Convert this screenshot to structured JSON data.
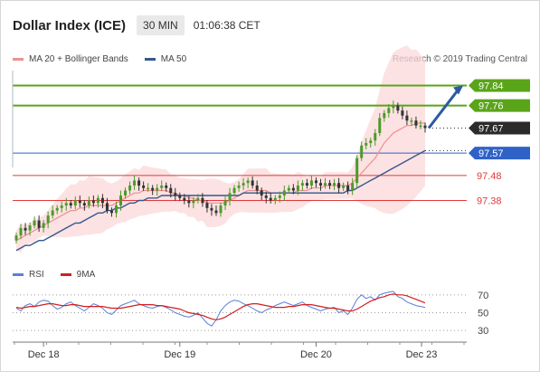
{
  "header": {
    "title": "Dollar Index (ICE)",
    "timeframe": "30 MIN",
    "time": "01:06:38 CET"
  },
  "legend": {
    "ma20_label": "MA 20 + Bollinger Bands",
    "ma50_label": "MA 50",
    "credit": "Research © 2019 Trading Central"
  },
  "rsi_legend": {
    "rsi_label": "RSI",
    "ma_label": "9MA"
  },
  "colors": {
    "green": "#5aa41a",
    "blue": "#2f62c7",
    "dark": "#2b2b2b",
    "red": "#e03a3a",
    "band": "#fbd8d8",
    "ma20": "#ef8f8f",
    "ma50": "#35578f",
    "candle_up": "#4d9a2a",
    "candle_down": "#333333",
    "rsi": "#5b7fd6",
    "rsi_ma": "#d11f1f",
    "arrow": "#2c5aa0"
  },
  "chart_data": [
    {
      "type": "candlestick",
      "title": "Dollar Index (ICE)",
      "ylim": [
        97.15,
        97.9
      ],
      "x_ticks": [
        "Dec 18",
        "Dec 19",
        "Dec 20",
        "Dec 23"
      ],
      "levels": [
        {
          "value": 97.84,
          "label": "97.84",
          "style": "green-line",
          "tag": "green"
        },
        {
          "value": 97.76,
          "label": "97.76",
          "style": "green-line",
          "tag": "green"
        },
        {
          "value": 97.67,
          "label": "97.67",
          "style": "dotted",
          "tag": "dark"
        },
        {
          "value": 97.57,
          "label": "97.57",
          "style": "blue-line",
          "tag": "blue"
        },
        {
          "value": 97.48,
          "label": "97.48",
          "style": "red-line",
          "tag": "none"
        },
        {
          "value": 97.38,
          "label": "97.38",
          "style": "red-line",
          "tag": "none"
        }
      ],
      "close": [
        97.24,
        97.27,
        97.26,
        97.28,
        97.3,
        97.27,
        97.29,
        97.32,
        97.34,
        97.35,
        97.36,
        97.37,
        97.36,
        97.38,
        97.37,
        97.36,
        97.38,
        97.37,
        97.39,
        97.37,
        97.34,
        97.33,
        97.36,
        97.4,
        97.42,
        97.44,
        97.46,
        97.44,
        97.43,
        97.43,
        97.42,
        97.43,
        97.44,
        97.43,
        97.41,
        97.4,
        97.39,
        97.38,
        97.37,
        97.38,
        97.39,
        97.37,
        97.35,
        97.34,
        97.33,
        97.36,
        97.38,
        97.41,
        97.43,
        97.44,
        97.45,
        97.46,
        97.44,
        97.42,
        97.4,
        97.39,
        97.38,
        97.39,
        97.4,
        97.42,
        97.43,
        97.42,
        97.44,
        97.45,
        97.44,
        97.46,
        97.45,
        97.44,
        97.45,
        97.44,
        97.45,
        97.43,
        97.44,
        97.42,
        97.45,
        97.55,
        97.6,
        97.61,
        97.62,
        97.65,
        97.71,
        97.73,
        97.75,
        97.76,
        97.74,
        97.72,
        97.7,
        97.7,
        97.68,
        97.68,
        97.67
      ],
      "ma20": [
        97.22,
        97.23,
        97.24,
        97.25,
        97.26,
        97.27,
        97.28,
        97.29,
        97.3,
        97.31,
        97.32,
        97.33,
        97.34,
        97.34,
        97.35,
        97.35,
        97.36,
        97.36,
        97.36,
        97.36,
        97.36,
        97.36,
        97.37,
        97.38,
        97.39,
        97.4,
        97.41,
        97.41,
        97.42,
        97.42,
        97.42,
        97.42,
        97.42,
        97.42,
        97.41,
        97.41,
        97.4,
        97.4,
        97.39,
        97.39,
        97.38,
        97.38,
        97.37,
        97.37,
        97.37,
        97.37,
        97.37,
        97.38,
        97.39,
        97.4,
        97.41,
        97.42,
        97.42,
        97.42,
        97.42,
        97.42,
        97.41,
        97.41,
        97.41,
        97.41,
        97.41,
        97.41,
        97.42,
        97.42,
        97.42,
        97.43,
        97.43,
        97.43,
        97.44,
        97.44,
        97.44,
        97.44,
        97.44,
        97.44,
        97.45,
        97.47,
        97.49,
        97.51,
        97.53,
        97.55,
        97.58,
        97.61,
        97.63,
        97.65,
        97.66,
        97.67,
        97.68,
        97.68,
        97.69,
        97.69,
        97.69
      ],
      "ma50": [
        97.18,
        97.19,
        97.2,
        97.2,
        97.21,
        97.22,
        97.22,
        97.23,
        97.24,
        97.25,
        97.26,
        97.27,
        97.28,
        97.29,
        97.29,
        97.3,
        97.31,
        97.32,
        97.33,
        97.33,
        97.34,
        97.34,
        97.35,
        97.35,
        97.36,
        97.37,
        97.37,
        97.38,
        97.38,
        97.39,
        97.39,
        97.39,
        97.4,
        97.4,
        97.4,
        97.4,
        97.4,
        97.4,
        97.4,
        97.4,
        97.4,
        97.4,
        97.4,
        97.4,
        97.4,
        97.4,
        97.4,
        97.4,
        97.4,
        97.4,
        97.41,
        97.41,
        97.41,
        97.41,
        97.41,
        97.41,
        97.41,
        97.41,
        97.41,
        97.41,
        97.41,
        97.41,
        97.41,
        97.41,
        97.41,
        97.41,
        97.41,
        97.41,
        97.41,
        97.41,
        97.41,
        97.41,
        97.41,
        97.42,
        97.42,
        97.43,
        97.44,
        97.45,
        97.46,
        97.47,
        97.48,
        97.49,
        97.5,
        97.51,
        97.52,
        97.53,
        97.54,
        97.55,
        97.56,
        97.57,
        97.58
      ],
      "projection": {
        "from": 97.67,
        "to": 97.84
      }
    },
    {
      "type": "line",
      "title": "RSI",
      "ylim": [
        25,
        80
      ],
      "y_ticks": [
        70,
        50,
        30
      ],
      "series": [
        {
          "name": "RSI",
          "values": [
            55,
            52,
            58,
            60,
            57,
            62,
            64,
            63,
            58,
            54,
            56,
            60,
            62,
            58,
            55,
            52,
            56,
            60,
            58,
            55,
            50,
            48,
            53,
            58,
            60,
            62,
            64,
            60,
            58,
            56,
            55,
            57,
            58,
            56,
            53,
            50,
            48,
            46,
            45,
            47,
            50,
            44,
            38,
            35,
            42,
            52,
            58,
            62,
            64,
            63,
            60,
            58,
            55,
            52,
            50,
            53,
            55,
            58,
            60,
            62,
            60,
            58,
            60,
            62,
            58,
            56,
            54,
            52,
            54,
            55,
            56,
            50,
            52,
            48,
            55,
            65,
            70,
            66,
            68,
            64,
            70,
            72,
            73,
            74,
            68,
            66,
            62,
            60,
            58,
            57,
            56
          ]
        },
        {
          "name": "9MA",
          "values": [
            56,
            55,
            56,
            57,
            57,
            58,
            59,
            60,
            60,
            59,
            58,
            58,
            59,
            59,
            58,
            57,
            57,
            57,
            57,
            57,
            56,
            55,
            55,
            55,
            56,
            57,
            58,
            59,
            59,
            59,
            59,
            58,
            58,
            57,
            56,
            55,
            54,
            52,
            50,
            49,
            48,
            47,
            45,
            43,
            42,
            43,
            45,
            48,
            51,
            54,
            57,
            59,
            60,
            60,
            59,
            58,
            57,
            56,
            56,
            56,
            57,
            57,
            58,
            59,
            59,
            59,
            58,
            57,
            56,
            55,
            55,
            54,
            53,
            52,
            52,
            54,
            57,
            60,
            63,
            65,
            67,
            68,
            70,
            71,
            70,
            70,
            69,
            67,
            65,
            63,
            61
          ]
        }
      ]
    }
  ]
}
